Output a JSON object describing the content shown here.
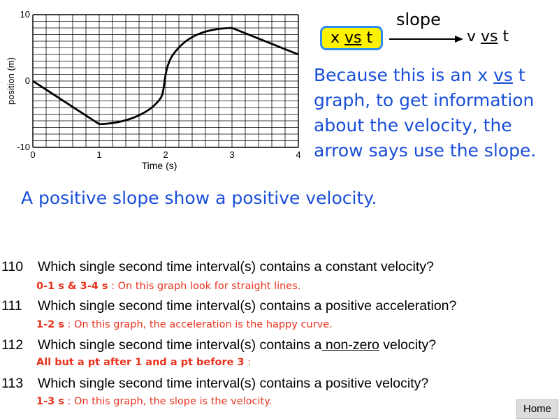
{
  "graph": {
    "y_axis_label": "position (m)",
    "x_axis_label": "Time (s)",
    "y_ticks": [
      "10",
      "0",
      "-10"
    ],
    "x_ticks": [
      "0",
      "1",
      "2",
      "3",
      "4"
    ]
  },
  "chart_data": {
    "type": "line",
    "xlabel": "Time (s)",
    "ylabel": "position (m)",
    "xlim": [
      0,
      4
    ],
    "ylim": [
      -10,
      10
    ],
    "grid": true,
    "series": [
      {
        "x": [
          0,
          1,
          1.4,
          1.8,
          1.98,
          2.05,
          2.4,
          2.8,
          3,
          4
        ],
        "y": [
          0,
          -6.5,
          -6,
          -4.3,
          -1,
          2.5,
          6.5,
          8,
          8,
          4
        ]
      }
    ]
  },
  "arrow_diagram": {
    "from_prefix": "x ",
    "from_vs": "vs",
    "from_suffix": " t",
    "arrow_label": "slope",
    "to_prefix": "v ",
    "to_vs": "vs",
    "to_suffix": " t",
    "highlight_color": "#fff200"
  },
  "explanation": {
    "before": "Because this is an x ",
    "vs": "vs",
    "after": " t graph, to get information about the velocity, the arrow says use the slope."
  },
  "positive_statement": "A positive slope show a positive velocity.",
  "questions": [
    {
      "number": "110",
      "text": "Which single second time interval(s) contains a constant velocity?",
      "answer": "0-1 s & 3-4 s",
      "note": " : On this graph look for straight lines."
    },
    {
      "number": "111",
      "text": "Which single second time interval(s) contains a positive acceleration?",
      "answer": "1-2 s",
      "note": " : On this graph, the acceleration is the happy curve."
    },
    {
      "number": "112",
      "text_before": "Which single second time interval(s) contains a",
      "text_underlined": " non-zero",
      "text_after": " velocity?",
      "answer": "All but a pt after 1 and a pt before 3",
      "note": " :"
    },
    {
      "number": "113",
      "text": "Which single second time interval(s) contains a positive velocity?",
      "answer": "1-3 s",
      "note": " : On this graph, the slope is the velocity."
    }
  ],
  "home_button": "Home",
  "colors": {
    "text_blue": "#1a4fd8",
    "answer_red": "#e8321e",
    "box_border": "#2e8df0"
  }
}
